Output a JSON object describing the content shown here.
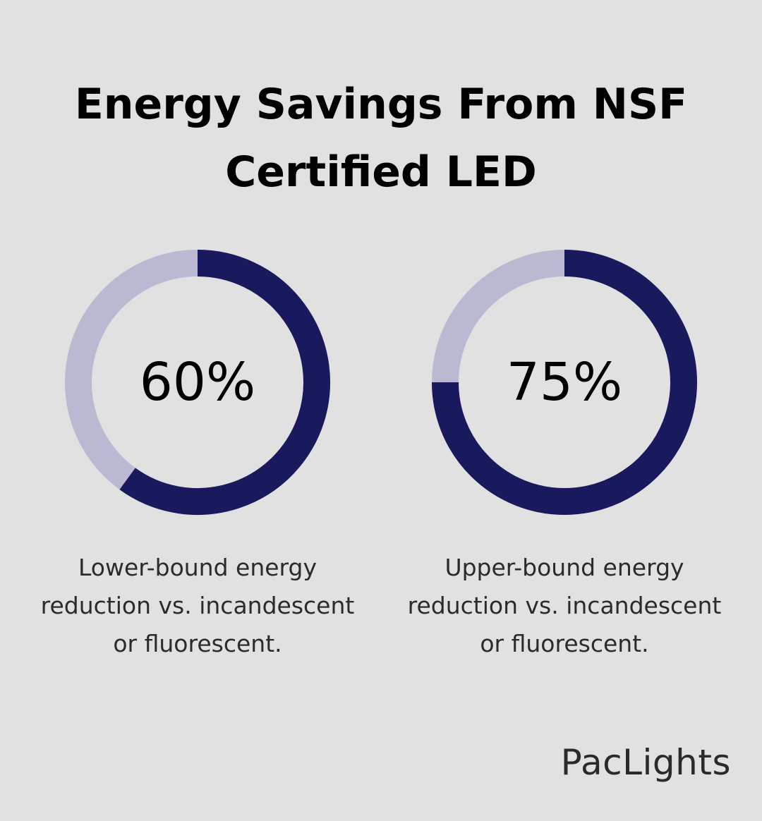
{
  "title": {
    "line1": "Energy Savings From NSF",
    "line2": "Certified LED"
  },
  "colors": {
    "background": "#e0e1e0",
    "filled": "#19195e",
    "track": "#b9bad1",
    "text": "#000000"
  },
  "chart_data": [
    {
      "type": "donut",
      "value": 60,
      "label": "60%",
      "caption_lines": [
        "Lower-bound energy",
        "reduction vs. incandescent",
        "or fluorescent."
      ]
    },
    {
      "type": "donut",
      "value": 75,
      "label": "75%",
      "caption_lines": [
        "Upper-bound energy",
        "reduction vs. incandescent",
        "or fluorescent."
      ]
    }
  ],
  "brand": {
    "logo_text": "PacLights"
  }
}
